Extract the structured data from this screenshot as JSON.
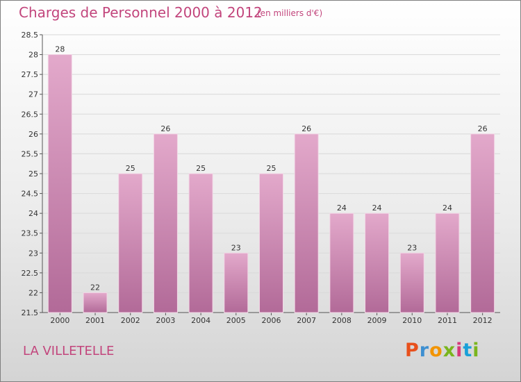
{
  "header": {
    "title": "Charges de Personnel 2000 à 2012",
    "subtitle": "(en milliers d'€)"
  },
  "footer": {
    "place": "LA VILLETELLE",
    "logo": "Proxiti",
    "logo_colors": [
      "#e8501c",
      "#3d8fd1",
      "#f29400",
      "#7ab51d",
      "#d63a7a",
      "#1aa0d8",
      "#7ab51d"
    ]
  },
  "colors": {
    "bar_top": "#e3a9cb",
    "bar_bottom": "#b26a98",
    "text": "#c2457c"
  },
  "chart_data": {
    "type": "bar",
    "title": "Charges de Personnel 2000 à 2012",
    "subtitle": "(en milliers d'€)",
    "categories": [
      "2000",
      "2001",
      "2002",
      "2003",
      "2004",
      "2005",
      "2006",
      "2007",
      "2008",
      "2009",
      "2010",
      "2011",
      "2012"
    ],
    "values": [
      28,
      22,
      25,
      26,
      25,
      23,
      25,
      26,
      24,
      24,
      23,
      24,
      26
    ],
    "value_labels": [
      "28",
      "22",
      "25",
      "26",
      "25",
      "23",
      "25",
      "26",
      "24",
      "24",
      "23",
      "24",
      "26"
    ],
    "yticks": [
      "21.5",
      "22",
      "22.5",
      "23",
      "23.5",
      "24",
      "24.5",
      "25",
      "25.5",
      "26",
      "26.5",
      "27",
      "27.5",
      "28",
      "28.5"
    ],
    "ylim": [
      21.5,
      28.5
    ],
    "grid": true
  }
}
